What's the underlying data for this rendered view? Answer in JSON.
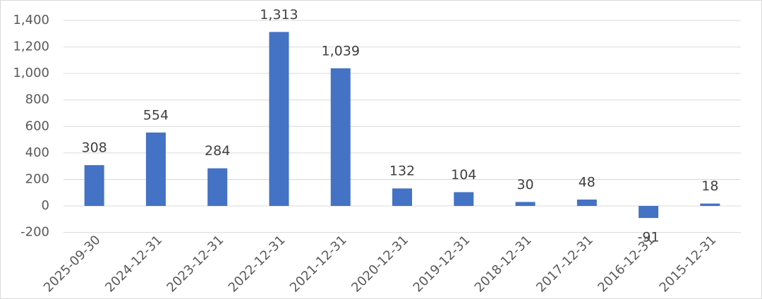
{
  "chart_data": {
    "type": "bar",
    "categories": [
      "2025-09-30",
      "2024-12-31",
      "2023-12-31",
      "2022-12-31",
      "2021-12-31",
      "2020-12-31",
      "2019-12-31",
      "2018-12-31",
      "2017-12-31",
      "2016-12-31",
      "2015-12-31"
    ],
    "values": [
      308,
      554,
      284,
      1313,
      1039,
      132,
      104,
      30,
      48,
      -91,
      18
    ],
    "value_labels": [
      "308",
      "554",
      "284",
      "1,313",
      "1,039",
      "132",
      "104",
      "30",
      "48",
      "-91",
      "18"
    ],
    "color": "#4472c4",
    "ylim": [
      -200,
      1400
    ],
    "yticks": [
      -200,
      0,
      200,
      400,
      600,
      800,
      {
        "value": 1000,
        "label": "1,000"
      },
      {
        "value": 1200,
        "label": "1,200"
      },
      {
        "value": 1400,
        "label": "1,400"
      }
    ],
    "grid": true
  }
}
